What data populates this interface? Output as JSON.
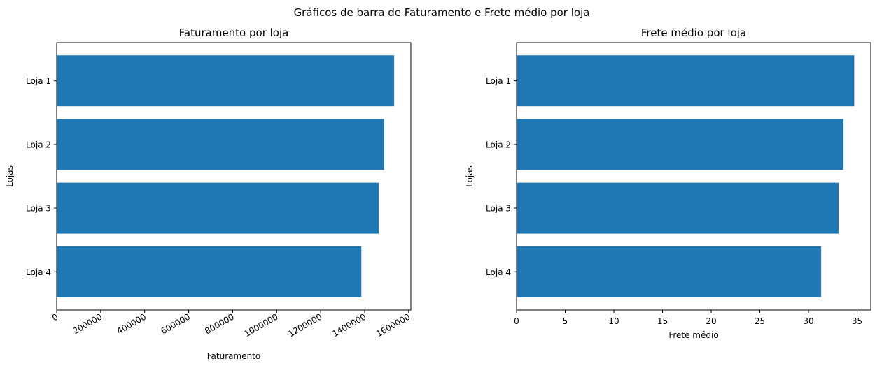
{
  "suptitle": "Gráficos de barra de Faturamento e Frete médio por loja",
  "chart_data": [
    {
      "type": "bar",
      "orientation": "horizontal",
      "title": "Faturamento por loja",
      "xlabel": "Faturamento",
      "ylabel": "Lojas",
      "categories": [
        "Loja 1",
        "Loja 2",
        "Loja 3",
        "Loja 4"
      ],
      "values": [
        1534000,
        1488000,
        1464000,
        1385000
      ],
      "xlim": [
        0,
        1610000
      ],
      "xticks": [
        0,
        200000,
        400000,
        600000,
        800000,
        1000000,
        1200000,
        1400000,
        1600000
      ],
      "xtick_labels": [
        "0",
        "200000",
        "400000",
        "600000",
        "800000",
        "1000000",
        "1200000",
        "1400000",
        "1600000"
      ],
      "xtick_rotation": 30,
      "bar_color": "#1f77b4",
      "grid": false
    },
    {
      "type": "bar",
      "orientation": "horizontal",
      "title": "Frete médio por loja",
      "xlabel": "Frete médio",
      "ylabel": "Lojas",
      "categories": [
        "Loja 1",
        "Loja 2",
        "Loja 3",
        "Loja 4"
      ],
      "values": [
        34.7,
        33.6,
        33.1,
        31.3
      ],
      "xlim": [
        0,
        36.4
      ],
      "xticks": [
        0,
        5,
        10,
        15,
        20,
        25,
        30,
        35
      ],
      "xtick_labels": [
        "0",
        "5",
        "10",
        "15",
        "20",
        "25",
        "30",
        "35"
      ],
      "xtick_rotation": 0,
      "bar_color": "#1f77b4",
      "grid": false
    }
  ]
}
